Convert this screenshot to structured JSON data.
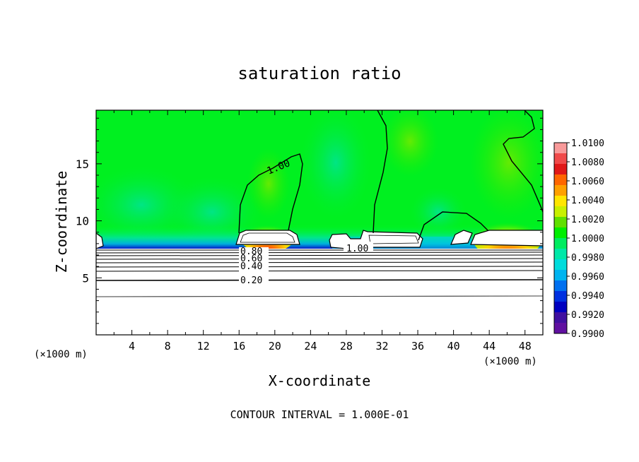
{
  "chart_data": {
    "type": "heatmap",
    "title": "saturation ratio",
    "xlabel": "X-coordinate",
    "ylabel": "Z-coordinate",
    "x_unit_label_left": "(×1000 m)",
    "x_unit_label_right": "(×1000 m)",
    "footer": "CONTOUR INTERVAL = 1.000E-01",
    "xlim": [
      0,
      50
    ],
    "ylim": [
      0,
      19.7
    ],
    "x_ticks": [
      "4",
      "8",
      "12",
      "16",
      "20",
      "24",
      "28",
      "32",
      "36",
      "40",
      "44",
      "48"
    ],
    "y_ticks": [
      "5",
      "10",
      "15"
    ],
    "colorbar": {
      "ticks": [
        "1.0100",
        "1.0080",
        "1.0060",
        "1.0040",
        "1.0020",
        "1.0000",
        "0.9980",
        "0.9960",
        "0.9940",
        "0.9920",
        "0.9900"
      ],
      "colors": [
        "#f89a9a",
        "#f04a4a",
        "#e01818",
        "#ff6600",
        "#ffa000",
        "#ffe600",
        "#c8f000",
        "#60e000",
        "#00ee00",
        "#00ec60",
        "#00e8a8",
        "#00dcdc",
        "#00b4f0",
        "#0070f0",
        "#0030e0",
        "#0000c0",
        "#4010a0",
        "#6010a0"
      ]
    },
    "contour_labels": [
      "1.00",
      "1.00",
      "0.80",
      "0.60",
      "0.40",
      "0.20"
    ],
    "contour_interval": 0.1
  }
}
